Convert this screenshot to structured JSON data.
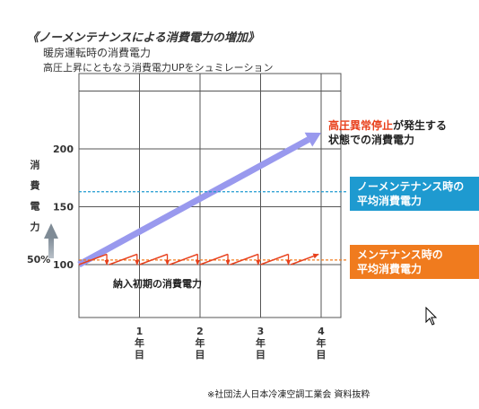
{
  "header": {
    "title": "《ノーメンテナンスによる消費電力の増加》",
    "subtitle1": "暖房運転時の消費電力",
    "subtitle2": "高圧上昇にともなう消費電力UPをシュミレーション"
  },
  "axis": {
    "ylabel": "消費電力",
    "y_ticks": [
      "100",
      "150",
      "200"
    ],
    "percent_label": "50%",
    "x_ticks": [
      {
        "num": "1",
        "c1": "年",
        "c2": "目"
      },
      {
        "num": "2",
        "c1": "年",
        "c2": "目"
      },
      {
        "num": "3",
        "c1": "年",
        "c2": "目"
      },
      {
        "num": "4",
        "c1": "年",
        "c2": "目"
      }
    ]
  },
  "annotations": {
    "red_highlight": "高圧異常停止",
    "red_rest": "が発生する",
    "red_line2": "状態での消費電力",
    "blue_line1": "ノーメンテナンス時の",
    "blue_line2": "平均消費電力",
    "orange_line1": "メンテナンス時の",
    "orange_line2": "平均消費電力",
    "normal": "納入初期の消費電力"
  },
  "source_note": "※社団法人日本冷凍空調工業会 資料抜粋",
  "colors": {
    "no_maintenance_arrow": "#9999ee",
    "no_maintenance_avg": "#1e9ad0",
    "maintenance_avg": "#f07b1e",
    "sawtooth": "#e8401c"
  },
  "chart_data": {
    "type": "line",
    "xlabel": "",
    "ylabel": "消費電力",
    "xlim": [
      0,
      4
    ],
    "ylim": [
      75,
      250
    ],
    "x_ticks": [
      1,
      2,
      3,
      4
    ],
    "y_ticks": [
      100,
      150,
      200
    ],
    "grid": true,
    "series": [
      {
        "name": "高圧異常停止が発生する状態での消費電力",
        "kind": "arrow",
        "x": [
          0,
          4
        ],
        "y": [
          100,
          214
        ]
      },
      {
        "name": "ノーメンテナンス時の平均消費電力",
        "kind": "hline",
        "y": 163
      },
      {
        "name": "メンテナンス時の平均消費電力",
        "kind": "hline",
        "y": 104
      },
      {
        "name": "",
        "kind": "sawtooth",
        "cycles": 8,
        "low": 100,
        "high": 109,
        "x_start": 0,
        "x_end": 4
      },
      {
        "name": "納入初期の消費電力",
        "kind": "hline",
        "y": 100
      }
    ]
  }
}
